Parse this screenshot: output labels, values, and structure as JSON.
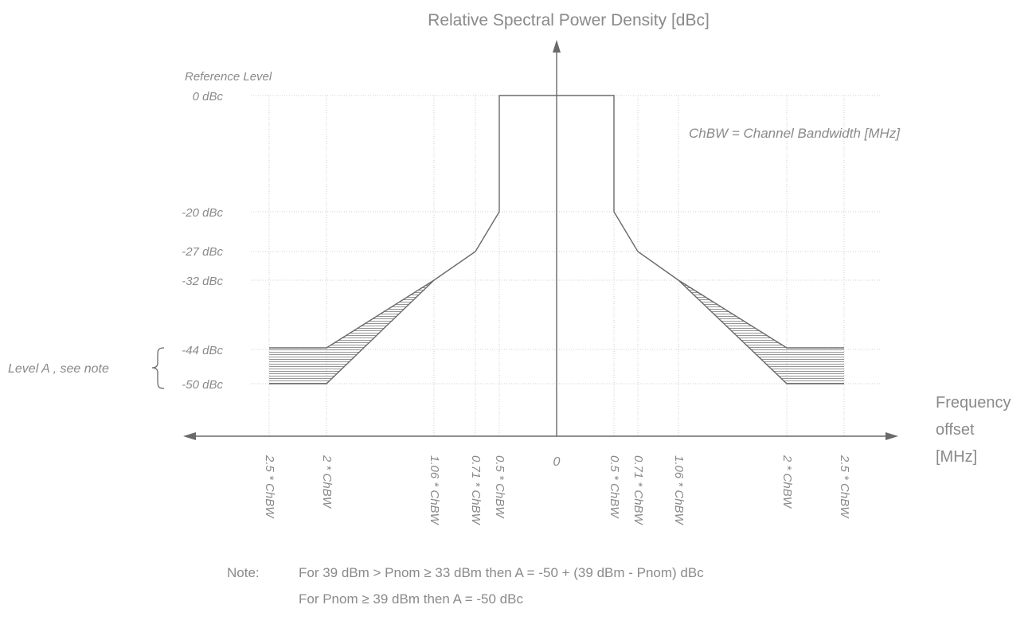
{
  "title": "Relative Spectral Power Density [dBc]",
  "reference_level": "Reference Level",
  "chbw_note": "ChBW = Channel Bandwidth [MHz]",
  "level_a_label": "Level A , see note",
  "x_axis_label": [
    "Frequency",
    "offset",
    "[MHz]"
  ],
  "y_levels": [
    {
      "id": "0",
      "label": "0 dBc"
    },
    {
      "id": "m20",
      "label": "-20 dBc"
    },
    {
      "id": "m27",
      "label": "-27 dBc"
    },
    {
      "id": "m32",
      "label": "-32 dBc"
    },
    {
      "id": "m44",
      "label": "-44 dBc"
    },
    {
      "id": "m50",
      "label": "-50 dBc"
    }
  ],
  "x_ticks": {
    "left": [
      "2.5 * ChBW",
      "2 * ChBW",
      "1.06 * ChBW",
      "0.71 * ChBW",
      "0.5 * ChBW"
    ],
    "center": "0",
    "right": [
      "0.5 * ChBW",
      "0.71 * ChBW",
      "1.06 * ChBW",
      "2 * ChBW",
      "2.5 * ChBW"
    ]
  },
  "note": {
    "label": "Note:",
    "line1": "For 39 dBm > Pnom ≥ 33 dBm then A = -50 + (39 dBm - Pnom) dBc",
    "line2": "For Pnom ≥ 39 dBm then A = -50 dBc"
  },
  "colors": {
    "ink": "#6a6a6a",
    "text": "#8a8a8a",
    "grid": "#cfcfcf"
  }
}
